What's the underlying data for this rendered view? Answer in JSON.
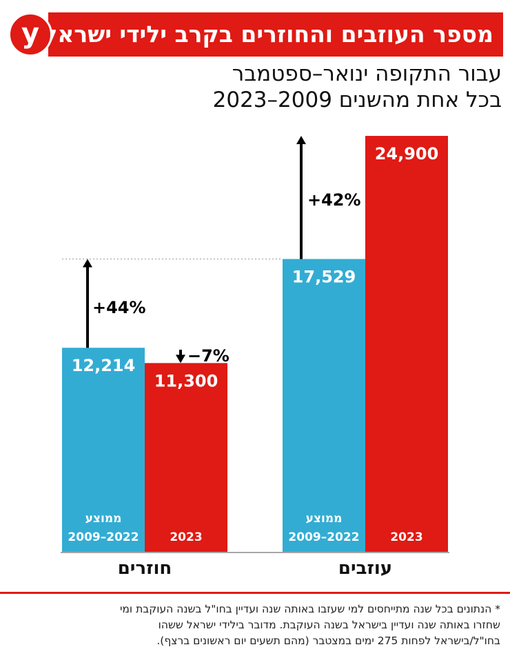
{
  "header": {
    "title": "מספר העוזבים והחוזרים בקרב ילידי ישראל*",
    "logo": "y",
    "subtitle_line1": "עבור התקופה ינואר–ספטמבר",
    "subtitle_line2": "בכל אחת מהשנים 2009–2023"
  },
  "colors": {
    "average": "#33acd3",
    "year2023": "#e01a14",
    "accent": "#e01a14"
  },
  "chart_data": {
    "type": "bar",
    "groups": [
      {
        "name": "חוזרים",
        "bars": [
          {
            "label_line1": "ממוצע",
            "label_line2": "2009–2022",
            "value": 12214,
            "value_label": "12,214",
            "series": "average"
          },
          {
            "label_line1": "",
            "label_line2": "2023",
            "value": 11300,
            "value_label": "11,300",
            "series": "year2023"
          }
        ],
        "change": "+44%",
        "change_2023": "−7%"
      },
      {
        "name": "עוזבים",
        "bars": [
          {
            "label_line1": "ממוצע",
            "label_line2": "2009–2022",
            "value": 17529,
            "value_label": "17,529",
            "series": "average"
          },
          {
            "label_line1": "",
            "label_line2": "2023",
            "value": 24900,
            "value_label": "24,900",
            "series": "year2023"
          }
        ],
        "change": "+42%"
      }
    ]
  },
  "footnote": {
    "line1": "* הנתונים בכל שנה מתייחסים למי שעזבו באותה שנה ועדיין בחו\"ל בשנה העוקבת ומי",
    "line2": "שחזרו באותה שנה ועדיין בישראל בשנה העוקבת. מדובר בילידי ישראל ששהו",
    "line3": "בחו\"ל/בישראל לפחות 275 ימים במצטבר (מהם תשעים יום ראשונים ברצף)."
  }
}
